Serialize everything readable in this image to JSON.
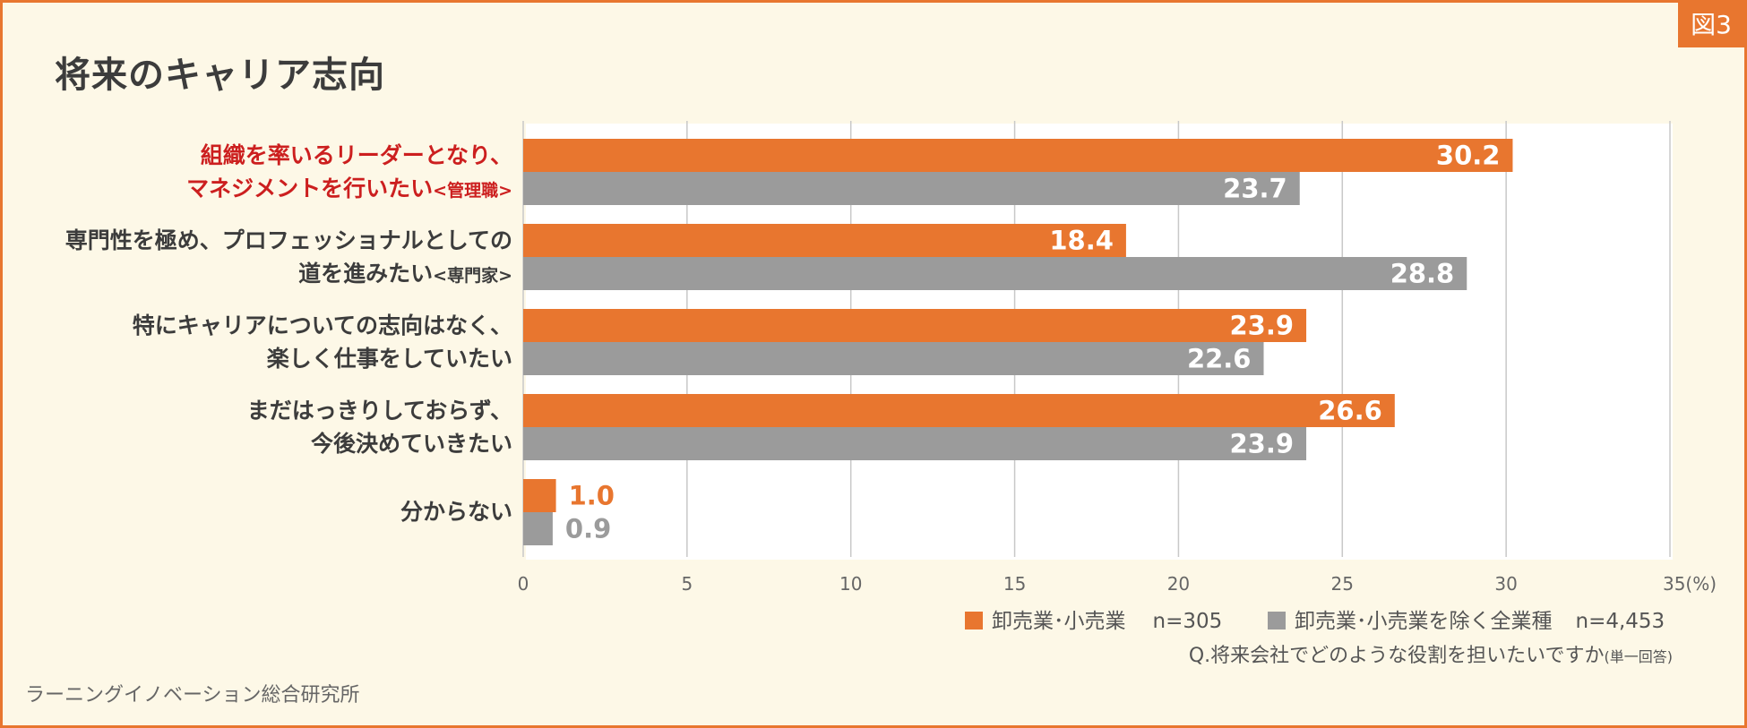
{
  "figure_badge": "図3",
  "chart_data": {
    "type": "bar",
    "orientation": "horizontal",
    "title": "将来のキャリア志向",
    "categories": [
      {
        "line1": "組織を率いるリーダーとなり、",
        "line2": "マネジメントを行いたい",
        "sub": "<管理職>",
        "highlight": true
      },
      {
        "line1": "専門性を極め、プロフェッショナルとしての",
        "line2": "道を進みたい",
        "sub": "<専門家>",
        "highlight": false
      },
      {
        "line1": "特にキャリアについての志向はなく、",
        "line2": "楽しく仕事をしていたい",
        "sub": "",
        "highlight": false
      },
      {
        "line1": "まだはっきりしておらず、",
        "line2": "今後決めていきたい",
        "sub": "",
        "highlight": false
      },
      {
        "line1": "分からない",
        "line2": "",
        "sub": "",
        "highlight": false
      }
    ],
    "series": [
      {
        "name": "卸売業･小売業",
        "n_label": "n=305",
        "color": "#e8762f",
        "values": [
          30.2,
          18.4,
          23.9,
          26.6,
          1.0
        ],
        "labels": [
          "30.2",
          "18.4",
          "23.9",
          "26.6",
          "1.0"
        ]
      },
      {
        "name": "卸売業･小売業を除く全業種",
        "n_label": "n=4,453",
        "color": "#9b9b9b",
        "values": [
          23.7,
          28.8,
          22.6,
          23.9,
          0.9
        ],
        "labels": [
          "23.7",
          "28.8",
          "22.6",
          "23.9",
          "0.9"
        ]
      }
    ],
    "xlim": [
      0,
      35
    ],
    "xticks": [
      "0",
      "5",
      "10",
      "15",
      "20",
      "25",
      "30",
      "35(%)"
    ],
    "grid": true,
    "legend_position": "bottom-right"
  },
  "question_text": "Q.将来会社でどのような役割を担いたいですか",
  "question_note": "(単一回答)",
  "source": "ラーニングイノベーション総合研究所"
}
